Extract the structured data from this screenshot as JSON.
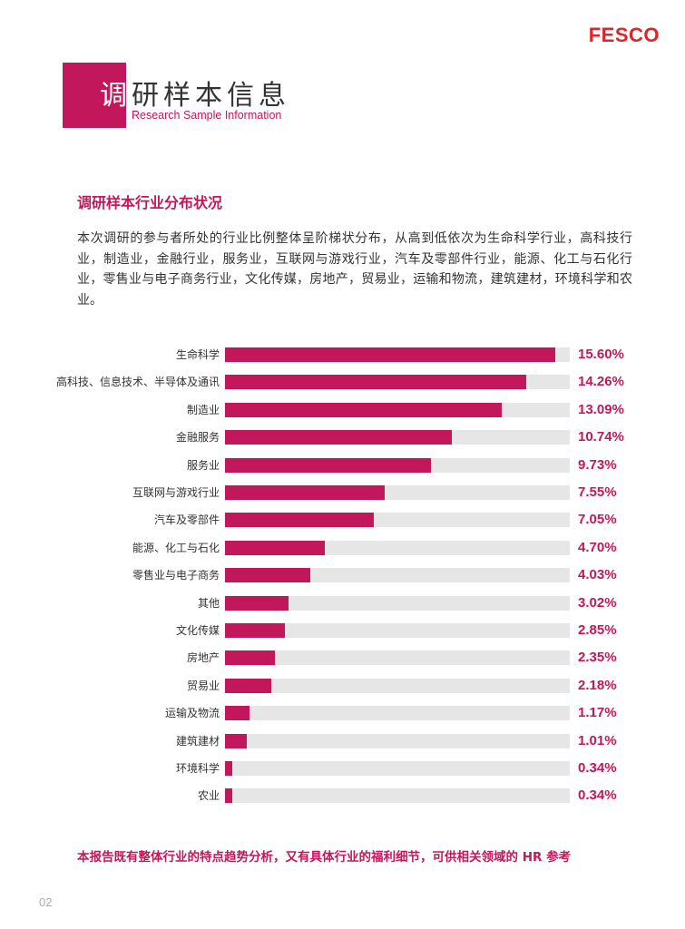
{
  "header": {
    "logo": "FESCO",
    "title_cn_part1": "调",
    "title_cn_part2": "研样本信息",
    "title_en": "Research Sample Information"
  },
  "section": {
    "heading": "调研样本行业分布状况",
    "intro": "本次调研的参与者所处的行业比例整体呈阶梯状分布，从高到低依次为生命科学行业，高科技行业，制造业，金融行业，服务业，互联网与游戏行业，汽车及零部件行业，能源、化工与石化行业，零售业与电子商务行业，文化传媒，房地产，贸易业，运输和物流，建筑建材，环境科学和农业。"
  },
  "chart_data": {
    "type": "bar",
    "orientation": "horizontal",
    "categories": [
      "生命科学",
      "高科技、信息技术、半导体及通讯",
      "制造业",
      "金融服务",
      "服务业",
      "互联网与游戏行业",
      "汽车及零部件",
      "能源、化工与石化",
      "零售业与电子商务",
      "其他",
      "文化传媒",
      "房地产",
      "贸易业",
      "运输及物流",
      "建筑建材",
      "环境科学",
      "农业"
    ],
    "values": [
      15.6,
      14.26,
      13.09,
      10.74,
      9.73,
      7.55,
      7.05,
      4.7,
      4.03,
      3.02,
      2.85,
      2.35,
      2.18,
      1.17,
      1.01,
      0.34,
      0.34
    ],
    "value_labels": [
      "15.60%",
      "14.26%",
      "13.09%",
      "10.74%",
      "9.73%",
      "7.55%",
      "7.05%",
      "4.70%",
      "4.03%",
      "3.02%",
      "2.85%",
      "2.35%",
      "2.18%",
      "1.17%",
      "1.01%",
      "0.34%",
      "0.34%"
    ],
    "xlim": [
      0,
      16.3
    ],
    "bar_color": "#c2185b",
    "track_color": "#e6e6e6"
  },
  "footer": {
    "note": "本报告既有整体行业的特点趋势分析，又有具体行业的福利细节，可供相关领域的 HR 参考",
    "page_number": "02"
  },
  "colors": {
    "accent": "#c2185b",
    "logo": "#e0242b"
  }
}
